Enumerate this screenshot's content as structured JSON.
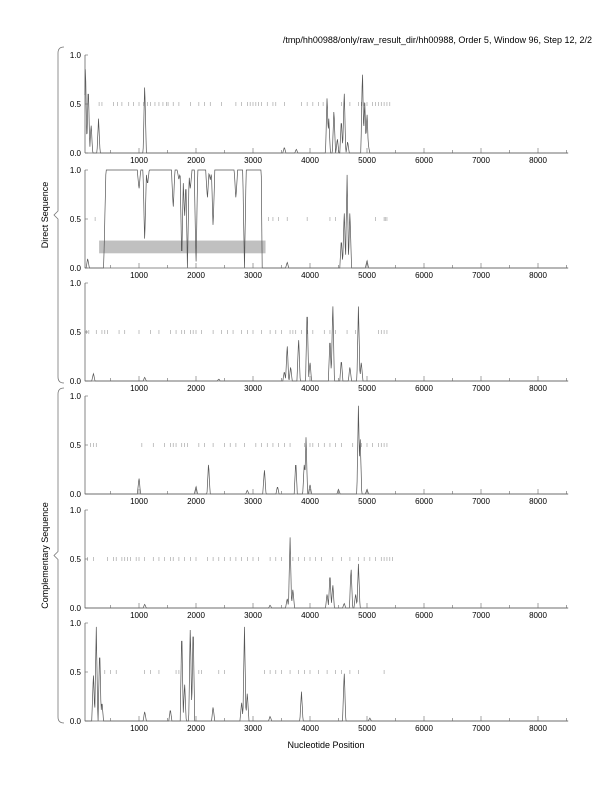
{
  "chart_data": {
    "type": "line",
    "title": "/tmp/hh00988/only/raw_result_dir/hh00988, Order 5, Window 96, Step 12, 2/2",
    "xlabel": "Nucleotide Position",
    "xlim": [
      50,
      8530
    ],
    "ylim": [
      0,
      1
    ],
    "x_ticks": [
      1000,
      2000,
      3000,
      4000,
      5000,
      6000,
      7000,
      8000
    ],
    "y_ticks": [
      "0.0",
      "0.5",
      "1.0"
    ],
    "grid": false,
    "groups": [
      {
        "label": "Direct Sequence",
        "panels": [
          0,
          1,
          2
        ]
      },
      {
        "label": "Complementary Sequence",
        "panels": [
          3,
          4,
          5
        ]
      }
    ],
    "panels": [
      {
        "peaks": [
          [
            60,
            0.92
          ],
          [
            110,
            0.7
          ],
          [
            160,
            0.3
          ],
          [
            290,
            0.35
          ],
          [
            1100,
            0.72
          ],
          [
            3550,
            0.06
          ],
          [
            3760,
            0.04
          ],
          [
            4300,
            0.6
          ],
          [
            4330,
            0.35
          ],
          [
            4420,
            0.45
          ],
          [
            4480,
            0.15
          ],
          [
            4550,
            0.35
          ],
          [
            4600,
            0.65
          ],
          [
            4660,
            0.12
          ],
          [
            4920,
            0.86
          ],
          [
            4960,
            0.55
          ],
          [
            5000,
            0.42
          ],
          [
            5020,
            0.1
          ]
        ],
        "markers": [
          300,
          350,
          550,
          620,
          700,
          820,
          900,
          1000,
          1080,
          1150,
          1200,
          1280,
          1350,
          1420,
          1480,
          1510,
          1600,
          1700,
          1900,
          2050,
          2150,
          2250,
          2450,
          2700,
          2800,
          2900,
          2950,
          3000,
          3050,
          3100,
          3150,
          3250,
          3350,
          3400,
          3550,
          3850,
          3950,
          4050,
          4150,
          4230,
          4550,
          4700,
          4850,
          4900,
          4950,
          5000,
          5100,
          5150,
          5200,
          5250,
          5300,
          5350,
          5400
        ]
      },
      {
        "peaks": [
          [
            100,
            0.1
          ],
          [
            4600,
            0.6
          ],
          [
            4650,
            0.95
          ],
          [
            4700,
            0.6
          ],
          [
            3600,
            0.06
          ],
          [
            5000,
            0.08
          ],
          [
            4550,
            0.3
          ]
        ],
        "plateau": {
          "from": 380,
          "to": 3160,
          "level": 1.0
        },
        "dips": [
          [
            1000,
            0.8
          ],
          [
            1100,
            0.25
          ],
          [
            1150,
            0.85
          ],
          [
            1600,
            0.6
          ],
          [
            1700,
            0.9
          ],
          [
            1750,
            0.05
          ],
          [
            1800,
            0.5
          ],
          [
            1850,
            0.0
          ],
          [
            1900,
            0.8
          ],
          [
            2000,
            0.0
          ],
          [
            2200,
            0.7
          ],
          [
            2250,
            0.9
          ],
          [
            2300,
            0.4
          ],
          [
            2700,
            0.7
          ],
          [
            2850,
            0.0
          ]
        ],
        "highlight": {
          "x": [
            300,
            3220
          ],
          "y": [
            0.15,
            0.28
          ]
        },
        "markers": [
          230,
          3270,
          3350,
          3450,
          3600,
          3950,
          4350,
          4450,
          5150,
          5300,
          5320,
          5350
        ]
      },
      {
        "peaks": [
          [
            200,
            0.08
          ],
          [
            1100,
            0.04
          ],
          [
            2400,
            0.02
          ],
          [
            3550,
            0.1
          ],
          [
            3600,
            0.38
          ],
          [
            3660,
            0.15
          ],
          [
            3800,
            0.45
          ],
          [
            3950,
            0.76
          ],
          [
            4000,
            0.2
          ],
          [
            4350,
            0.45
          ],
          [
            4400,
            0.82
          ],
          [
            4550,
            0.22
          ],
          [
            4700,
            0.15
          ],
          [
            4850,
            0.76
          ],
          [
            4900,
            0.2
          ]
        ],
        "markers": [
          80,
          120,
          250,
          350,
          400,
          450,
          650,
          750,
          1000,
          1200,
          1350,
          1550,
          1650,
          1750,
          1800,
          1900,
          1950,
          2000,
          2100,
          2300,
          2450,
          2550,
          2650,
          2800,
          2900,
          3000,
          3150,
          3300,
          3400,
          3500,
          3650,
          3700,
          3750,
          3850,
          3950,
          4050,
          4250,
          4350,
          4450,
          4650,
          4800,
          5200,
          5250,
          5300,
          5350
        ]
      },
      {
        "peaks": [
          [
            1000,
            0.17
          ],
          [
            2000,
            0.08
          ],
          [
            2220,
            0.32
          ],
          [
            2900,
            0.04
          ],
          [
            3200,
            0.26
          ],
          [
            3430,
            0.08
          ],
          [
            3750,
            0.34
          ],
          [
            3900,
            0.32
          ],
          [
            3930,
            0.58
          ],
          [
            4000,
            0.1
          ],
          [
            4500,
            0.05
          ],
          [
            4850,
            0.9
          ],
          [
            4880,
            0.6
          ],
          [
            5000,
            0.05
          ]
        ],
        "markers": [
          150,
          200,
          250,
          1050,
          1250,
          1450,
          1550,
          1600,
          1650,
          1750,
          1800,
          1850,
          2050,
          2150,
          2300,
          2500,
          2600,
          2700,
          2850,
          3050,
          3150,
          3250,
          3350,
          3450,
          3550,
          3650,
          3900,
          4000,
          4050,
          4150,
          4250,
          4350,
          4450,
          4550,
          4750,
          4900,
          5000,
          5100,
          5200,
          5250,
          5300,
          5350
        ]
      },
      {
        "peaks": [
          [
            1100,
            0.04
          ],
          [
            3300,
            0.03
          ],
          [
            3600,
            0.1
          ],
          [
            3650,
            0.72
          ],
          [
            3700,
            0.2
          ],
          [
            4300,
            0.15
          ],
          [
            4350,
            0.36
          ],
          [
            4400,
            0.25
          ],
          [
            4600,
            0.05
          ],
          [
            4720,
            0.42
          ],
          [
            4850,
            0.45
          ],
          [
            4800,
            0.15
          ]
        ],
        "markers": [
          100,
          200,
          450,
          550,
          600,
          700,
          750,
          800,
          850,
          950,
          1000,
          1100,
          1250,
          1350,
          1450,
          1550,
          1600,
          1700,
          1800,
          1900,
          2000,
          2200,
          2300,
          2400,
          2500,
          2600,
          2700,
          2800,
          2900,
          3000,
          3100,
          3300,
          3400,
          3500,
          3700,
          3800,
          3900,
          4000,
          4100,
          4200,
          4400,
          4550,
          4700,
          4850,
          4950,
          5050,
          5150,
          5250,
          5300,
          5350,
          5400,
          5450
        ]
      },
      {
        "peaks": [
          [
            200,
            0.5
          ],
          [
            250,
            0.96
          ],
          [
            310,
            0.75
          ],
          [
            350,
            0.2
          ],
          [
            1100,
            0.1
          ],
          [
            1550,
            0.12
          ],
          [
            1750,
            0.95
          ],
          [
            1800,
            0.4
          ],
          [
            1900,
            1.0
          ],
          [
            1950,
            1.0
          ],
          [
            2300,
            0.15
          ],
          [
            2800,
            0.2
          ],
          [
            2850,
            0.96
          ],
          [
            2900,
            0.3
          ],
          [
            3300,
            0.05
          ],
          [
            3850,
            0.3
          ],
          [
            4600,
            0.52
          ],
          [
            5050,
            0.03
          ]
        ],
        "markers": [
          400,
          500,
          600,
          1100,
          1200,
          1350,
          1650,
          1700,
          2050,
          2100,
          2400,
          2500,
          3200,
          3300,
          3400,
          3500,
          3650,
          3800,
          3900,
          4000,
          4150,
          4300,
          4450,
          4550,
          4700,
          4850,
          5300
        ]
      }
    ]
  },
  "colors": {
    "line": "#555555",
    "highlight": "#c0c0c0",
    "marker": "#999999",
    "axis": "#666666"
  }
}
